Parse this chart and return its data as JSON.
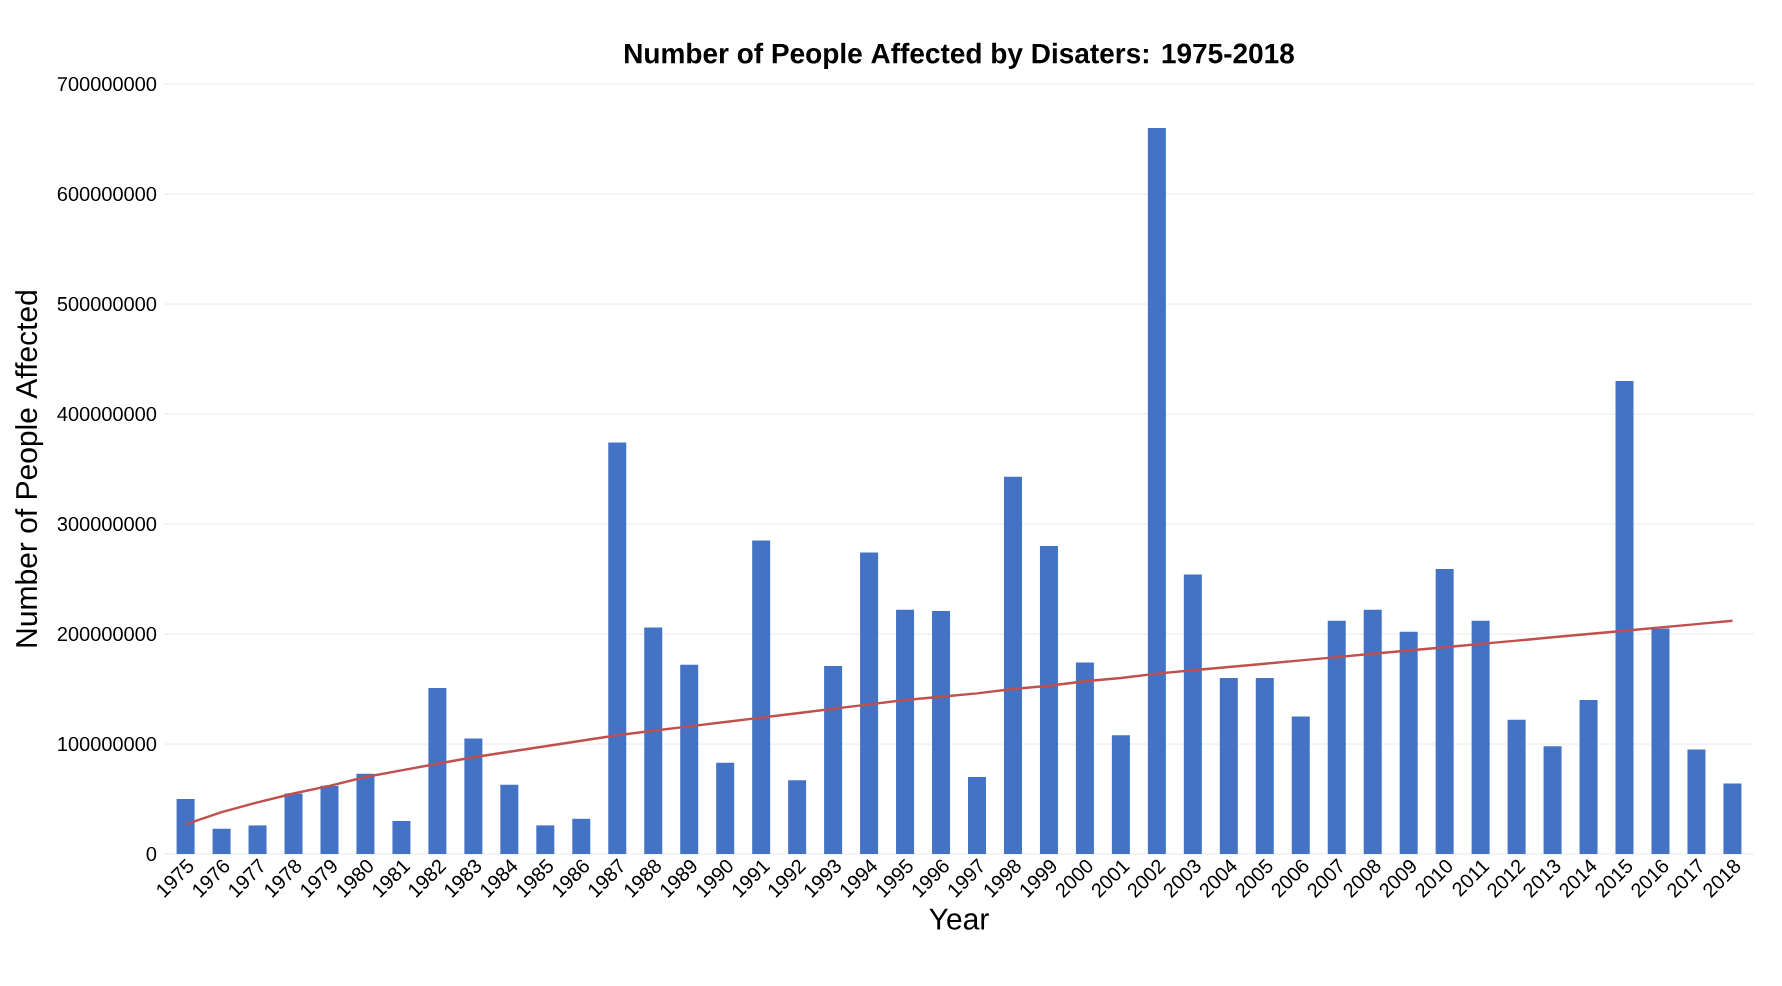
{
  "chart_data": {
    "type": "bar",
    "title": "Number of People Affected by Disaters: 1975-2018",
    "xlabel": "Year",
    "ylabel": "Number of People Affected",
    "categories": [
      "1975",
      "1976",
      "1977",
      "1978",
      "1979",
      "1980",
      "1981",
      "1982",
      "1983",
      "1984",
      "1985",
      "1986",
      "1987",
      "1988",
      "1989",
      "1990",
      "1991",
      "1992",
      "1993",
      "1994",
      "1995",
      "1996",
      "1997",
      "1998",
      "1999",
      "2000",
      "2001",
      "2002",
      "2003",
      "2004",
      "2005",
      "2006",
      "2007",
      "2008",
      "2009",
      "2010",
      "2011",
      "2012",
      "2013",
      "2014",
      "2015",
      "2016",
      "2017",
      "2018"
    ],
    "series": [
      {
        "color": "#4472c4",
        "values": [
          50000000,
          23000000,
          26000000,
          55000000,
          62000000,
          73000000,
          30000000,
          151000000,
          105000000,
          63000000,
          26000000,
          32000000,
          374000000,
          206000000,
          172000000,
          83000000,
          285000000,
          67000000,
          171000000,
          274000000,
          222000000,
          221000000,
          70000000,
          343000000,
          280000000,
          174000000,
          108000000,
          660000000,
          254000000,
          160000000,
          160000000,
          125000000,
          212000000,
          222000000,
          202000000,
          259000000,
          212000000,
          122000000,
          98000000,
          140000000,
          430000000,
          205000000,
          95000000,
          64000000
        ]
      },
      {
        "type": "line",
        "color": "#c0504d",
        "values": [
          27000000,
          38000000,
          47000000,
          55000000,
          62000000,
          70000000,
          76000000,
          82000000,
          88000000,
          93000000,
          98000000,
          103000000,
          108000000,
          112000000,
          116000000,
          120000000,
          124000000,
          128000000,
          132000000,
          136000000,
          140000000,
          143000000,
          146000000,
          150000000,
          153000000,
          157000000,
          160000000,
          164000000,
          167000000,
          170000000,
          173000000,
          176000000,
          179000000,
          182000000,
          185000000,
          188000000,
          191000000,
          194000000,
          197000000,
          200000000,
          203000000,
          206000000,
          209000000,
          212000000
        ]
      }
    ],
    "ylim": [
      0,
      700000000
    ],
    "yticks": [
      0,
      100000000,
      200000000,
      300000000,
      400000000,
      500000000,
      600000000,
      700000000
    ],
    "grid": "y"
  }
}
